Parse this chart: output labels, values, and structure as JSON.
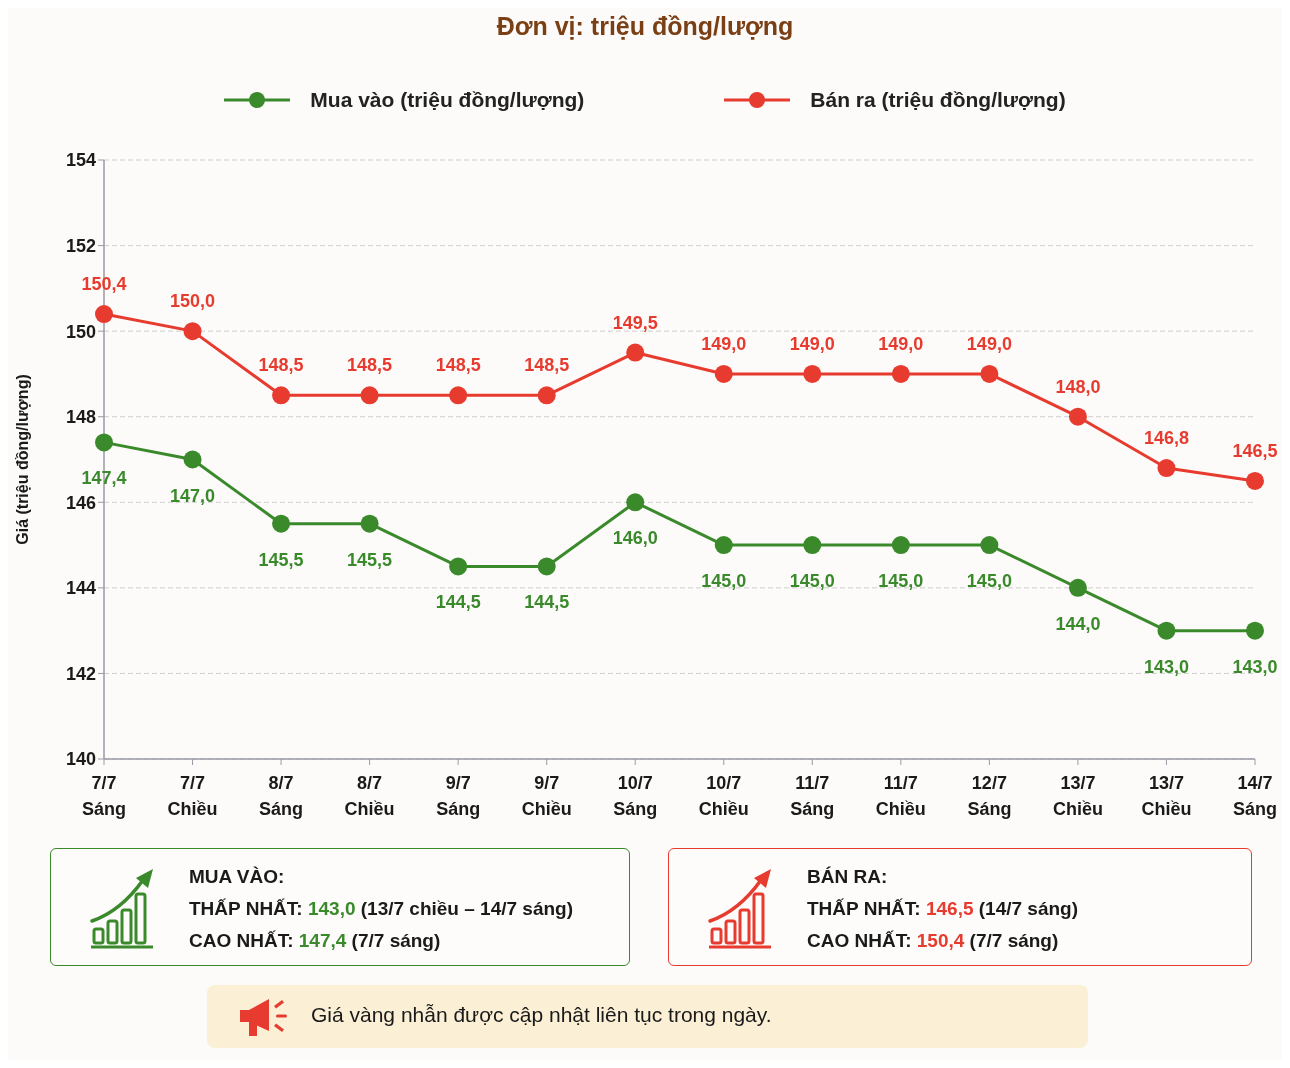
{
  "chart_data": {
    "type": "line",
    "title": "Đơn vị: triệu đồng/lượng",
    "ylabel": "Giá (triệu đồng/lượng)",
    "categories": [
      "7/7\nSáng",
      "7/7\nChiều",
      "8/7\nSáng",
      "8/7\nChiều",
      "9/7\nSáng",
      "9/7\nChiều",
      "10/7\nSáng",
      "10/7\nChiều",
      "11/7\nSáng",
      "11/7\nChiều",
      "12/7\nSáng",
      "13/7\nChiều",
      "13/7\nChiều",
      "14/7\nSáng"
    ],
    "series": [
      {
        "name": "Mua vào (triệu đồng/lượng)",
        "color": "#3a8a2c",
        "values": [
          147.4,
          147.0,
          145.5,
          145.5,
          144.5,
          144.5,
          146.0,
          145.0,
          145.0,
          145.0,
          145.0,
          144.0,
          143.0,
          143.0
        ],
        "value_labels": [
          "147,4",
          "147,0",
          "145,5",
          "145,5",
          "144,5",
          "144,5",
          "146,0",
          "145,0",
          "145,0",
          "145,0",
          "145,0",
          "144,0",
          "143,0",
          "143,0"
        ]
      },
      {
        "name": "Bán ra (triệu đồng/lượng)",
        "color": "#e63b2e",
        "values": [
          150.4,
          150.0,
          148.5,
          148.5,
          148.5,
          148.5,
          149.5,
          149.0,
          149.0,
          149.0,
          149.0,
          148.0,
          146.8,
          146.5
        ],
        "value_labels": [
          "150,4",
          "150,0",
          "148,5",
          "148,5",
          "148,5",
          "148,5",
          "149,5",
          "149,0",
          "149,0",
          "149,0",
          "149,0",
          "148,0",
          "146,8",
          "146,5"
        ]
      }
    ],
    "ylim": [
      140,
      154
    ],
    "yticks": [
      140,
      142,
      144,
      146,
      148,
      150,
      152,
      154
    ],
    "grid": "y",
    "legend": "top",
    "marker": "circle",
    "line_style": "solid",
    "annotations": [
      "MUA VÀO:",
      "THẤP NHẤT: 143,0 (13/7 chiều – 14/7 sáng)",
      "CAO NHẤT: 147,4 (7/7 sáng)",
      "BÁN RA:",
      "THẤP NHẤT: 146,5 (14/7 sáng)",
      "CAO NHẤT: 150,4 (7/7 sáng)",
      "Giá vàng nhẫn được cập nhật liên tục trong ngày."
    ]
  }
}
